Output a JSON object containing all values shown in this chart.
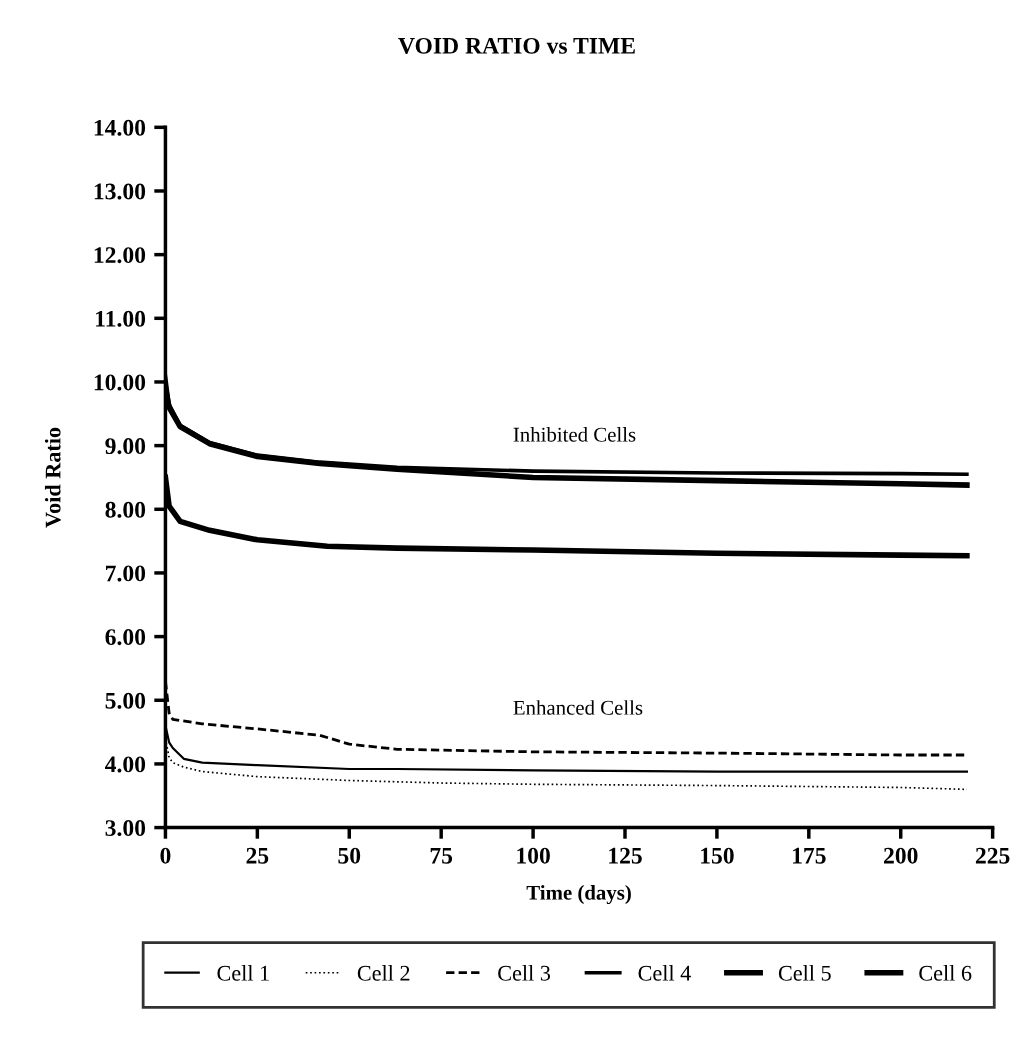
{
  "chart_data": {
    "type": "line",
    "title": "VOID RATIO vs TIME",
    "xlabel": "Time (days)",
    "ylabel": "Void Ratio",
    "xlim": [
      0,
      225
    ],
    "xticks": [
      0,
      25,
      50,
      75,
      100,
      125,
      150,
      175,
      200,
      225
    ],
    "ylim": [
      3,
      14
    ],
    "yticks": [
      {
        "value": 3,
        "label": "3.00"
      },
      {
        "value": 4,
        "label": "4.00"
      },
      {
        "value": 5,
        "label": "5.00"
      },
      {
        "value": 6,
        "label": "6.00"
      },
      {
        "value": 7,
        "label": "7.00"
      },
      {
        "value": 8,
        "label": "8.00"
      },
      {
        "value": 9,
        "label": "9.00"
      },
      {
        "value": 10,
        "label": "10.00"
      },
      {
        "value": 11,
        "label": "11.00"
      },
      {
        "value": 12,
        "label": "12.00"
      },
      {
        "value": 13,
        "label": "13.00"
      },
      {
        "value": 14,
        "label": "14.00"
      }
    ],
    "grid": false,
    "legend": "bottom",
    "marker": "none",
    "annotations": [
      "Inhibited Cells",
      "Enhanced Cells"
    ],
    "series": [
      {
        "name": "Cell 1",
        "color": "#000000",
        "line_style": "solid",
        "x": [
          0,
          1,
          2,
          5,
          10,
          25,
          50,
          63,
          100,
          150,
          200,
          218
        ],
        "values": [
          4.6,
          4.34,
          4.25,
          4.08,
          4.02,
          3.98,
          3.92,
          3.92,
          3.9,
          3.88,
          3.88,
          3.88
        ]
      },
      {
        "name": "Cell 2",
        "color": "#000000",
        "line_style": "dotted",
        "x": [
          0,
          1,
          2,
          5,
          10,
          25,
          50,
          75,
          100,
          150,
          200,
          218
        ],
        "values": [
          4.4,
          4.1,
          4.02,
          3.95,
          3.88,
          3.8,
          3.74,
          3.7,
          3.68,
          3.66,
          3.63,
          3.6
        ]
      },
      {
        "name": "Cell 3",
        "color": "#000000",
        "line_style": "dashed",
        "x": [
          0,
          1,
          2,
          10,
          25,
          42,
          50,
          63,
          100,
          150,
          200,
          218
        ],
        "values": [
          5.3,
          4.8,
          4.7,
          4.63,
          4.55,
          4.45,
          4.31,
          4.23,
          4.19,
          4.17,
          4.14,
          4.14
        ]
      },
      {
        "name": "Cell 4",
        "color": "#000000",
        "line_style": "solid",
        "x": [
          0,
          1,
          4,
          12,
          25,
          42,
          63,
          100,
          150,
          200,
          218
        ],
        "values": [
          10.1,
          9.65,
          9.32,
          9.05,
          8.85,
          8.74,
          8.66,
          8.6,
          8.57,
          8.56,
          8.55
        ]
      },
      {
        "name": "Cell 5",
        "color": "#000000",
        "line_style": "solid",
        "x": [
          0,
          1,
          4,
          12,
          25,
          42,
          63,
          100,
          150,
          200,
          218
        ],
        "values": [
          9.9,
          9.6,
          9.3,
          9.03,
          8.83,
          8.72,
          8.63,
          8.5,
          8.45,
          8.4,
          8.38
        ]
      },
      {
        "name": "Cell 6",
        "color": "#000000",
        "line_style": "solid",
        "x": [
          0,
          1,
          4,
          12,
          25,
          44,
          63,
          100,
          150,
          200,
          218
        ],
        "values": [
          8.5,
          8.05,
          7.81,
          7.67,
          7.52,
          7.42,
          7.39,
          7.36,
          7.31,
          7.28,
          7.27
        ]
      }
    ]
  }
}
